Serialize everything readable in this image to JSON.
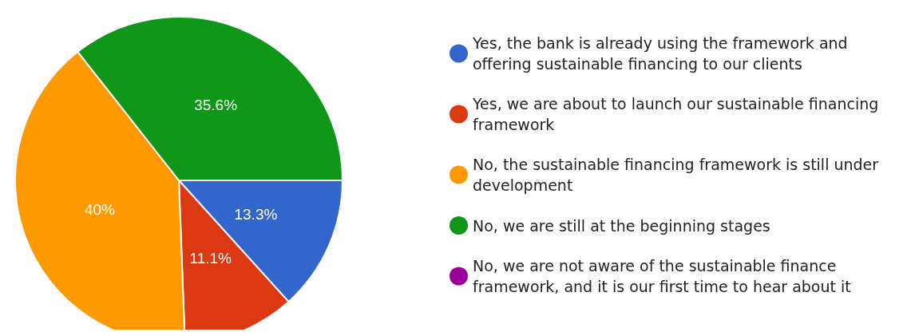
{
  "chart_data": {
    "type": "pie",
    "categories": [
      "Yes, the bank is already using the framework and offering sustainable financing to our clients",
      "Yes, we are about to launch our sustainable financing framework",
      "No, the sustainable financing framework is still under development",
      "No, we are still at the beginning stages",
      "No, we are not aware of the sustainable finance framework, and it is our first time to hear about it"
    ],
    "values": [
      13.3,
      11.1,
      40,
      35.6,
      0
    ],
    "colors": [
      "#3366cc",
      "#dc3912",
      "#ff9900",
      "#109618",
      "#990099"
    ],
    "value_labels": [
      "13.3%",
      "11.1%",
      "40%",
      "35.6%",
      null
    ],
    "legend": "right"
  }
}
